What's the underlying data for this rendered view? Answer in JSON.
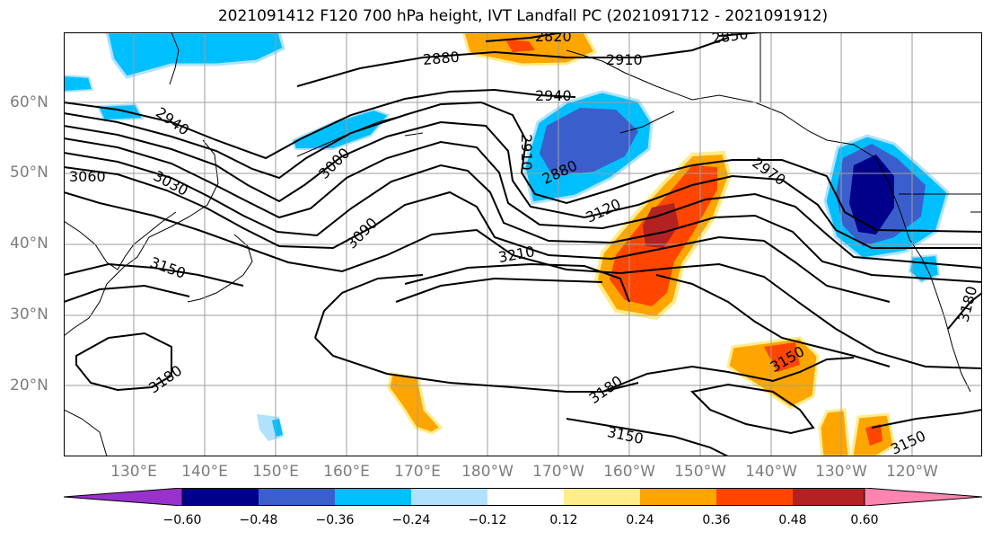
{
  "title": "2021091412 F120 700 hPa height, IVT Landfall PC (2021091712 - 2021091912)",
  "lat_labels": [
    "60°N",
    "50°N",
    "40°N",
    "30°N",
    "20°N"
  ],
  "lon_labels": [
    "130°E",
    "140°E",
    "150°E",
    "160°E",
    "170°E",
    "180°W",
    "170°W",
    "160°W",
    "150°W",
    "140°W",
    "130°W",
    "120°W"
  ],
  "contour_labels": [
    "2820",
    "2850",
    "2880",
    "2910",
    "2940",
    "2940",
    "2910",
    "2880",
    "3060",
    "3030",
    "3000",
    "2970",
    "3120",
    "3090",
    "3210",
    "3150",
    "3150",
    "3180",
    "3180",
    "3150",
    "3150",
    "3180"
  ],
  "colorbar": {
    "ticks": [
      "−0.60",
      "−0.48",
      "−0.36",
      "−0.24",
      "−0.12",
      "0.12",
      "0.24",
      "0.36",
      "0.48",
      "0.60"
    ],
    "colors": [
      "#9932cc",
      "#00008b",
      "#3a5fcd",
      "#00bfff",
      "#b0e2ff",
      "#ffffff",
      "#ffec8b",
      "#ffa500",
      "#ff4500",
      "#b22222",
      "#ff85b0"
    ]
  }
}
